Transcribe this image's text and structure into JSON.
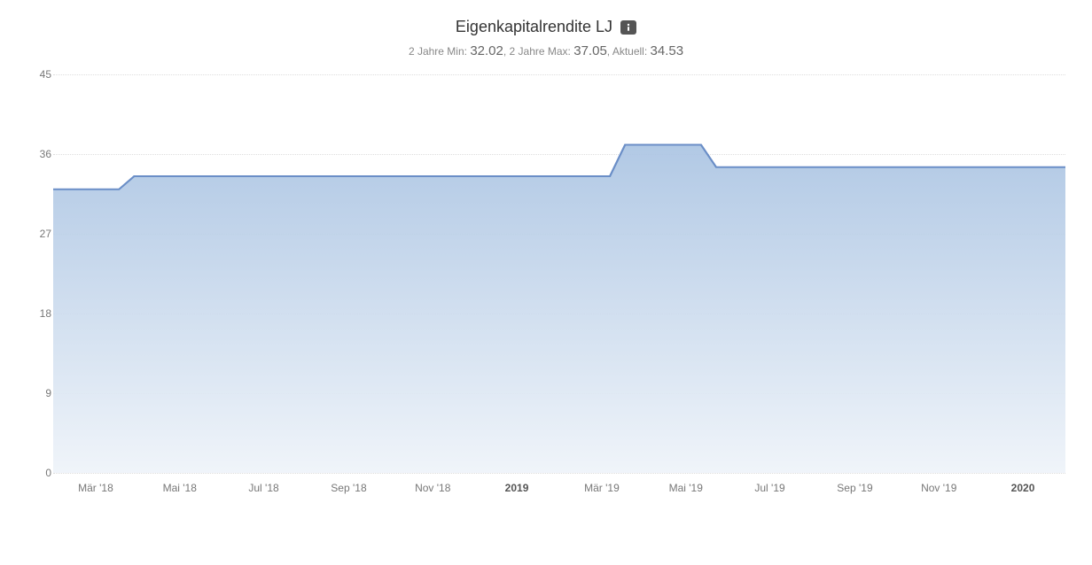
{
  "chart": {
    "type": "area",
    "title": "Eigenkapitalrendite LJ",
    "info_icon": "info-icon",
    "subtitle": {
      "min_label": "2 Jahre Min:",
      "min_value": "32.02",
      "sep1": ", ",
      "max_label": "2 Jahre Max:",
      "max_value": "37.05",
      "sep2": ", ",
      "current_label": "Aktuell:",
      "current_value": "34.53"
    },
    "y_axis": {
      "min": 0,
      "max": 45,
      "ticks": [
        0,
        9,
        18,
        27,
        36,
        45
      ]
    },
    "x_axis": {
      "ticks": [
        {
          "label": "Mär '18",
          "pos": 0.042,
          "bold": false
        },
        {
          "label": "Mai '18",
          "pos": 0.125,
          "bold": false
        },
        {
          "label": "Jul '18",
          "pos": 0.208,
          "bold": false
        },
        {
          "label": "Sep '18",
          "pos": 0.292,
          "bold": false
        },
        {
          "label": "Nov '18",
          "pos": 0.375,
          "bold": false
        },
        {
          "label": "2019",
          "pos": 0.458,
          "bold": true
        },
        {
          "label": "Mär '19",
          "pos": 0.542,
          "bold": false
        },
        {
          "label": "Mai '19",
          "pos": 0.625,
          "bold": false
        },
        {
          "label": "Jul '19",
          "pos": 0.708,
          "bold": false
        },
        {
          "label": "Sep '19",
          "pos": 0.792,
          "bold": false
        },
        {
          "label": "Nov '19",
          "pos": 0.875,
          "bold": false
        },
        {
          "label": "2020",
          "pos": 0.958,
          "bold": true
        }
      ]
    },
    "series": {
      "line_color": "#6a8ec7",
      "line_width": 2,
      "fill_gradient_top": "#a9c3e2",
      "fill_gradient_bottom": "#eef3f9",
      "fill_opacity": 0.9,
      "points": [
        {
          "x": 0.0,
          "y": 32.02
        },
        {
          "x": 0.065,
          "y": 32.02
        },
        {
          "x": 0.08,
          "y": 33.5
        },
        {
          "x": 0.55,
          "y": 33.5
        },
        {
          "x": 0.565,
          "y": 37.05
        },
        {
          "x": 0.64,
          "y": 37.05
        },
        {
          "x": 0.655,
          "y": 34.53
        },
        {
          "x": 1.0,
          "y": 34.53
        }
      ]
    },
    "background_color": "#ffffff",
    "grid_color": "#dddddd",
    "axis_label_color": "#777777",
    "title_fontsize": 18,
    "subtitle_label_fontsize": 12,
    "subtitle_value_fontsize": 15
  }
}
